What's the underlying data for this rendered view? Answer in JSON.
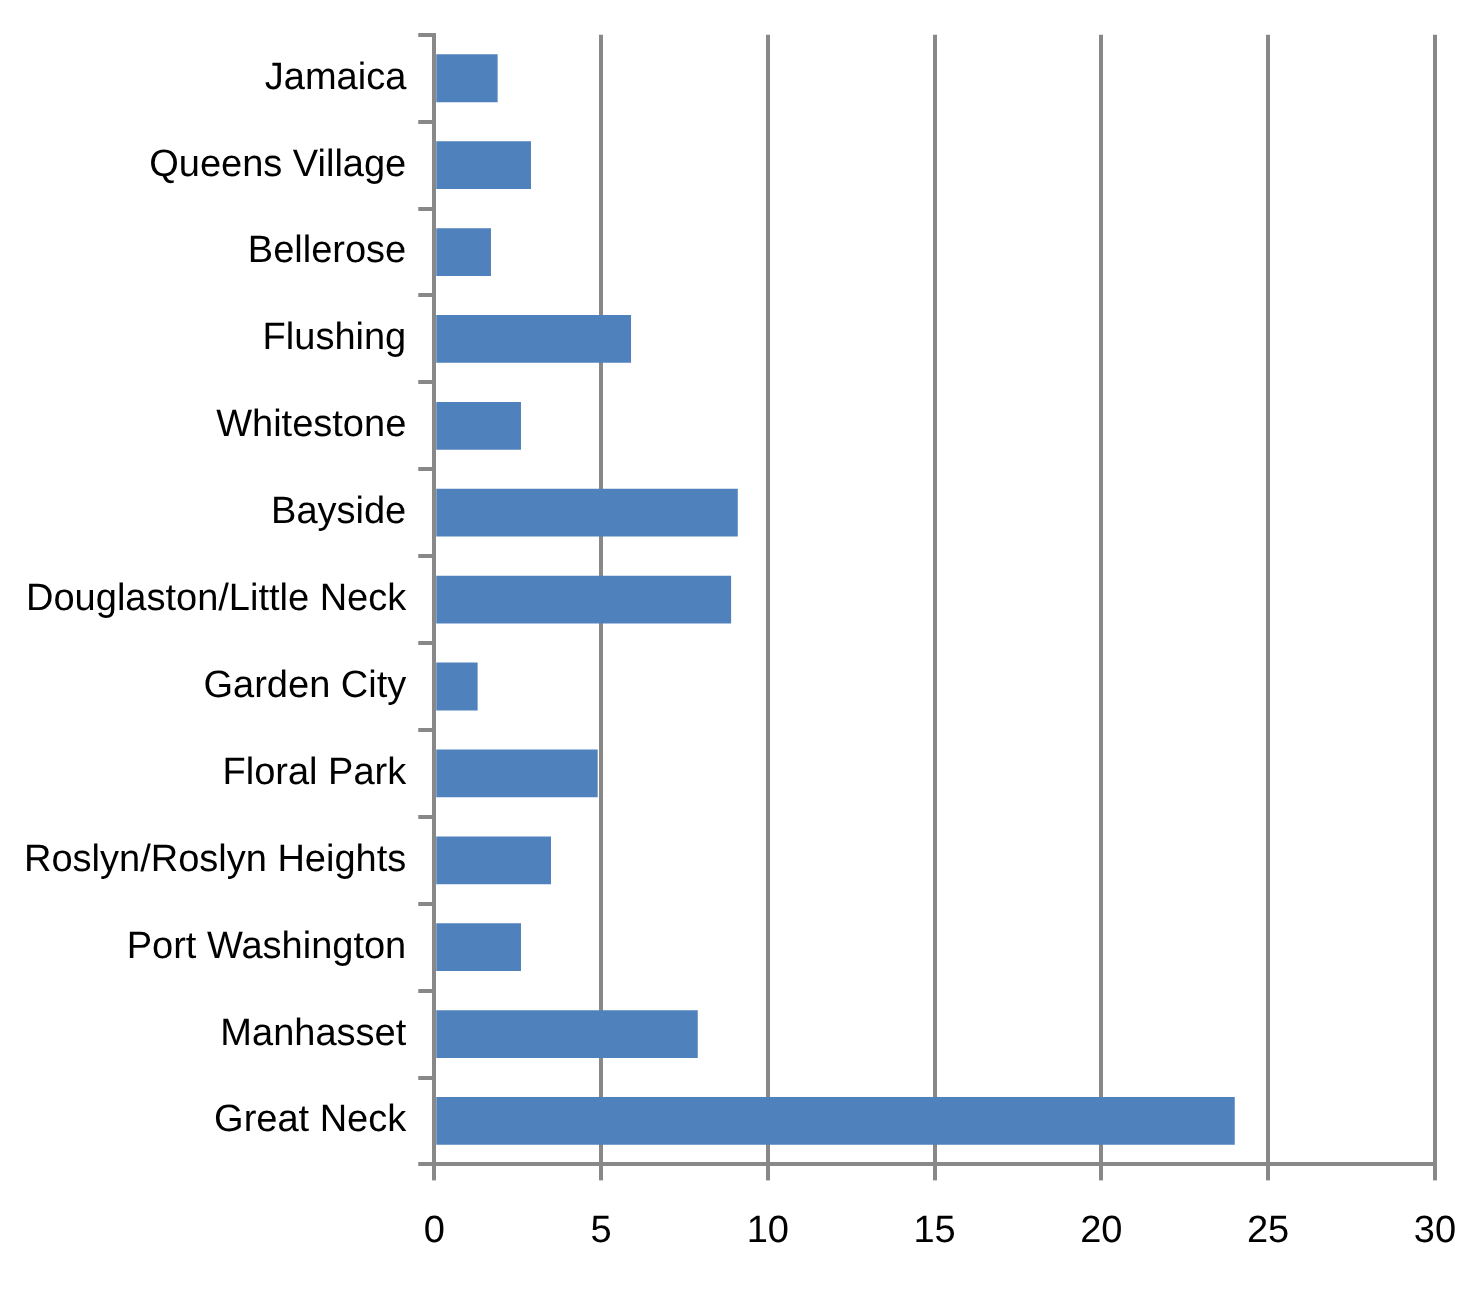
{
  "chart_data": {
    "type": "bar",
    "orientation": "horizontal",
    "categories": [
      "Jamaica",
      "Queens Village",
      "Bellerose",
      "Flushing",
      "Whitestone",
      "Bayside",
      "Douglaston/Little Neck",
      "Garden City",
      "Floral Park",
      "Roslyn/Roslyn Heights",
      "Port Washington",
      "Manhasset",
      "Great Neck"
    ],
    "values": [
      1.9,
      2.9,
      1.7,
      5.9,
      2.6,
      9.1,
      8.9,
      1.3,
      4.9,
      3.5,
      2.6,
      7.9,
      24.0
    ],
    "color": "#4f81bd",
    "xlim": [
      0,
      30
    ],
    "xticks": [
      0,
      5,
      10,
      15,
      20,
      25,
      30
    ],
    "grid": "x",
    "legend": false
  }
}
